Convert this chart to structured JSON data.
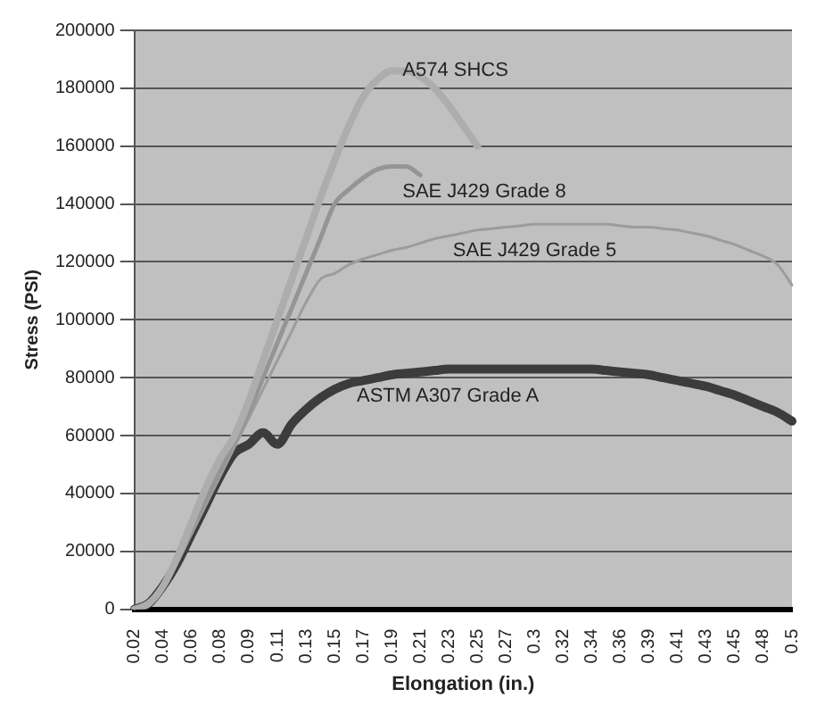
{
  "chart_data": {
    "type": "line",
    "xlabel": "Elongation (in.)",
    "ylabel": "Stress (PSI)",
    "categories": [
      "0.02",
      null,
      "0.04",
      null,
      "0.06",
      null,
      "0.08",
      null,
      "0.09",
      null,
      "0.11",
      null,
      "0.13",
      null,
      "0.15",
      null,
      "0.17",
      null,
      "0.19",
      null,
      "0.21",
      null,
      "0.23",
      null,
      "0.25",
      null,
      "0.27",
      null,
      "0.3",
      null,
      "0.32",
      null,
      "0.34",
      null,
      "0.36",
      null,
      "0.39",
      null,
      "0.41",
      null,
      "0.43",
      null,
      "0.45",
      null,
      "0.48",
      null,
      "0.5"
    ],
    "series": [
      {
        "name": "A574 SHCS",
        "color": "#adadad",
        "values": [
          0,
          2000,
          8000,
          18000,
          30000,
          42000,
          52000,
          60000,
          72000,
          86000,
          100000,
          114000,
          128000,
          142000,
          155000,
          167000,
          177000,
          183000,
          186000,
          186000,
          184000,
          180000,
          174000,
          167000,
          160000,
          null,
          null,
          null,
          null,
          null,
          null,
          null,
          null,
          null,
          null,
          null,
          null,
          null,
          null,
          null,
          null,
          null,
          null,
          null,
          null,
          null,
          null
        ]
      },
      {
        "name": "SAE J429 Grade 8",
        "color": "#959595",
        "values": [
          0,
          2000,
          8000,
          17000,
          28000,
          38000,
          48000,
          58000,
          68000,
          80000,
          92000,
          104000,
          116000,
          128000,
          140000,
          145000,
          149000,
          152000,
          153000,
          153000,
          150000,
          null,
          null,
          null,
          null,
          null,
          null,
          null,
          null,
          null,
          null,
          null,
          null,
          null,
          null,
          null,
          null,
          null,
          null,
          null,
          null,
          null,
          null,
          null,
          null,
          null,
          null
        ]
      },
      {
        "name": "SAE J429 Grade 5",
        "color": "#9c9c9c",
        "values": [
          0,
          2000,
          7000,
          16000,
          26000,
          36000,
          46000,
          56000,
          66000,
          76000,
          86000,
          96000,
          106000,
          114000,
          116000,
          119000,
          121000,
          122500,
          124000,
          125000,
          126500,
          128000,
          129000,
          130000,
          131000,
          131500,
          132000,
          132500,
          133000,
          133000,
          133000,
          133000,
          133000,
          133000,
          132500,
          132000,
          132000,
          131500,
          131000,
          130000,
          129000,
          127500,
          126000,
          124000,
          122000,
          119000,
          112000
        ]
      },
      {
        "name": "ASTM A307 Grade A",
        "color": "#3c3c3c",
        "values": [
          0,
          2000,
          8000,
          16000,
          26000,
          36000,
          46000,
          54000,
          57000,
          61000,
          57000,
          64000,
          69000,
          73000,
          76000,
          78000,
          79000,
          80000,
          81000,
          81500,
          82000,
          82500,
          83000,
          83000,
          83000,
          83000,
          83000,
          83000,
          83000,
          83000,
          83000,
          83000,
          83000,
          82500,
          82000,
          81500,
          81000,
          80000,
          79000,
          78000,
          77000,
          75500,
          74000,
          72000,
          70000,
          68000,
          65000
        ]
      }
    ],
    "ylim": [
      0,
      200000
    ],
    "yticks": [
      0,
      20000,
      40000,
      60000,
      80000,
      100000,
      120000,
      140000,
      160000,
      180000,
      200000
    ],
    "grid": "y",
    "legend": false,
    "marker": "none",
    "line_style": "solid"
  }
}
